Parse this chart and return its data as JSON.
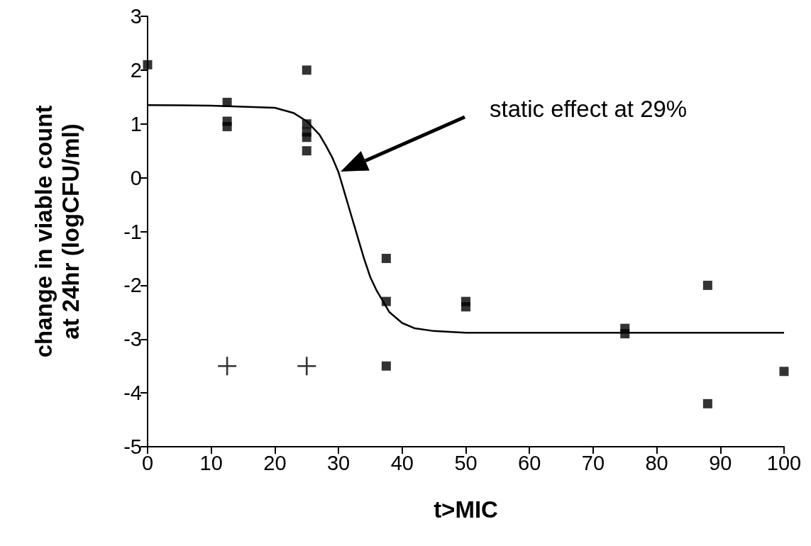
{
  "chart_data": {
    "type": "scatter",
    "xlabel": "t>MIC",
    "ylabel": "change in viable count\nat 24hr (logCFU/ml)",
    "xlim": [
      0,
      100
    ],
    "xticks": [
      0,
      10,
      20,
      30,
      40,
      50,
      60,
      70,
      80,
      90,
      100
    ],
    "ylim": [
      -5,
      3
    ],
    "yticks": [
      -5,
      -4,
      -3,
      -2,
      -1,
      0,
      1,
      2,
      3
    ],
    "grid": false,
    "annotations": [
      "static effect at 29%"
    ],
    "series": [
      {
        "marker": "square",
        "color": "#000000",
        "x": [
          0,
          12.5,
          12.5,
          12.5,
          25,
          25,
          25,
          25,
          25,
          37.5,
          37.5,
          37.5,
          50,
          50,
          75,
          75,
          88,
          88,
          100
        ],
        "values": [
          2.1,
          1.4,
          1.05,
          0.95,
          2.0,
          1.0,
          0.85,
          0.75,
          0.5,
          -1.5,
          -2.3,
          -3.5,
          -2.3,
          -2.4,
          -2.8,
          -2.9,
          -2.0,
          -4.2,
          -3.6
        ]
      },
      {
        "marker": "cross",
        "color": "#000000",
        "x": [
          12.5,
          25
        ],
        "values": [
          -3.5,
          -3.5
        ]
      },
      {
        "type": "line",
        "marker": "none",
        "line_style": "solid",
        "color": "#000000",
        "x": [
          0,
          10,
          20,
          23,
          25,
          27,
          28,
          29,
          30,
          31,
          32,
          33,
          34,
          35,
          36,
          37,
          38,
          40,
          42,
          45,
          50,
          60,
          100
        ],
        "values": [
          1.35,
          1.34,
          1.3,
          1.2,
          1.05,
          0.8,
          0.6,
          0.38,
          0.1,
          -0.3,
          -0.7,
          -1.1,
          -1.5,
          -1.85,
          -2.1,
          -2.3,
          -2.5,
          -2.7,
          -2.8,
          -2.85,
          -2.88,
          -2.88,
          -2.88
        ]
      }
    ]
  }
}
